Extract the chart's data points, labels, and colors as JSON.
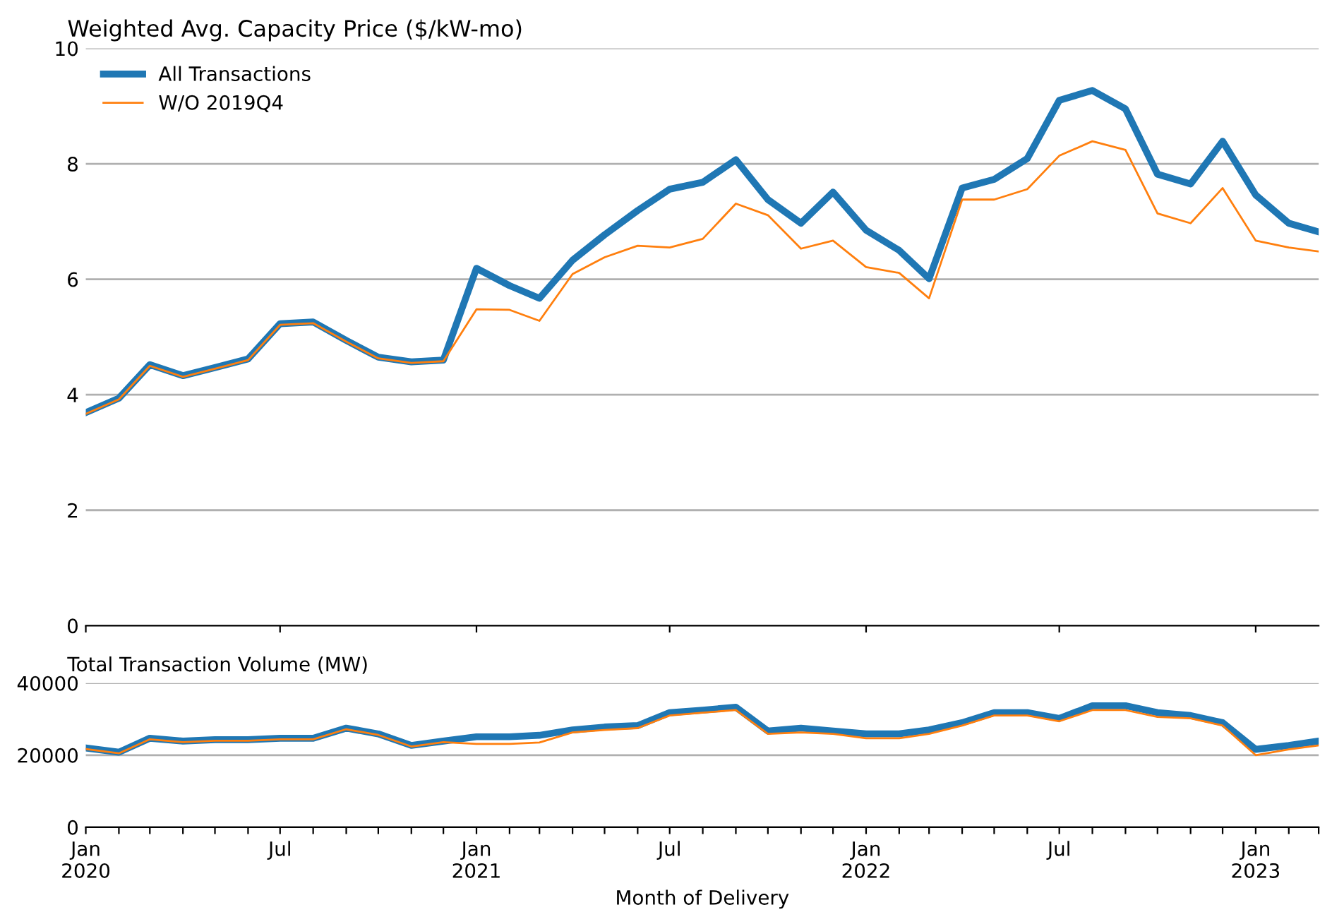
{
  "chart_data": [
    {
      "type": "line",
      "title": "Weighted Avg. Capacity Price ($/kW-mo)",
      "x": [
        "2020-01",
        "2020-02",
        "2020-03",
        "2020-04",
        "2020-05",
        "2020-06",
        "2020-07",
        "2020-08",
        "2020-09",
        "2020-10",
        "2020-11",
        "2020-12",
        "2021-01",
        "2021-02",
        "2021-03",
        "2021-04",
        "2021-05",
        "2021-06",
        "2021-07",
        "2021-08",
        "2021-09",
        "2021-10",
        "2021-11",
        "2021-12",
        "2022-01",
        "2022-02",
        "2022-03",
        "2022-04",
        "2022-05",
        "2022-06",
        "2022-07",
        "2022-08",
        "2022-09",
        "2022-10",
        "2022-11",
        "2022-12",
        "2023-01",
        "2023-02",
        "2023-03"
      ],
      "series": [
        {
          "name": "All Transactions",
          "color": "#1f77b4",
          "values": [
            3.69,
            3.94,
            4.52,
            4.33,
            4.47,
            4.62,
            5.23,
            5.26,
            4.94,
            4.65,
            4.57,
            4.6,
            6.19,
            5.89,
            5.67,
            6.33,
            6.77,
            7.19,
            7.56,
            7.68,
            8.07,
            7.38,
            6.97,
            7.51,
            6.85,
            6.5,
            6.01,
            7.58,
            7.73,
            8.09,
            9.1,
            9.27,
            8.95,
            7.82,
            7.65,
            8.39,
            7.46,
            6.97,
            6.82
          ]
        },
        {
          "name": "W/O 2019Q4",
          "color": "#ff7f0e",
          "values": [
            3.67,
            3.92,
            4.5,
            4.31,
            4.45,
            4.6,
            5.21,
            5.24,
            4.92,
            4.63,
            4.55,
            4.58,
            5.48,
            5.47,
            5.28,
            6.09,
            6.38,
            6.58,
            6.55,
            6.7,
            7.31,
            7.11,
            6.53,
            6.67,
            6.21,
            6.11,
            5.67,
            7.38,
            7.38,
            7.56,
            8.14,
            8.39,
            8.24,
            7.14,
            6.97,
            7.58,
            6.67,
            6.55,
            6.48
          ]
        }
      ],
      "xlim": [
        "2020-01",
        "2023-03"
      ],
      "ylim": [
        0,
        10
      ],
      "yticks": [
        0,
        2,
        4,
        6,
        8,
        10
      ],
      "xticks": [
        {
          "value": "2020-01",
          "label": null
        },
        {
          "value": "2020-07",
          "label": null
        },
        {
          "value": "2021-01",
          "label": null
        },
        {
          "value": "2021-07",
          "label": null
        },
        {
          "value": "2022-01",
          "label": null
        },
        {
          "value": "2022-07",
          "label": null
        },
        {
          "value": "2023-01",
          "label": null
        }
      ],
      "tick_labels": "y",
      "grid": "y",
      "legend": "top left"
    },
    {
      "type": "line",
      "title": "Total Transaction Volume (MW)",
      "xlabel": "Month of Delivery",
      "x": [
        "2020-01",
        "2020-02",
        "2020-03",
        "2020-04",
        "2020-05",
        "2020-06",
        "2020-07",
        "2020-08",
        "2020-09",
        "2020-10",
        "2020-11",
        "2020-12",
        "2021-01",
        "2021-02",
        "2021-03",
        "2021-04",
        "2021-05",
        "2021-06",
        "2021-07",
        "2021-08",
        "2021-09",
        "2021-10",
        "2021-11",
        "2021-12",
        "2022-01",
        "2022-02",
        "2022-03",
        "2022-04",
        "2022-05",
        "2022-06",
        "2022-07",
        "2022-08",
        "2022-09",
        "2022-10",
        "2022-11",
        "2022-12",
        "2023-01",
        "2023-02",
        "2023-03"
      ],
      "series": [
        {
          "color": "#1f77b4",
          "values": [
            22000,
            20800,
            24700,
            23900,
            24300,
            24300,
            24700,
            24700,
            27500,
            25900,
            22700,
            23900,
            25100,
            25100,
            25500,
            27000,
            27800,
            28200,
            31800,
            32500,
            33300,
            26700,
            27500,
            26700,
            25900,
            25900,
            27000,
            29000,
            31800,
            31800,
            30200,
            33700,
            33700,
            31800,
            31000,
            29000,
            21600,
            22700,
            23900
          ]
        },
        {
          "color": "#ff7f0e",
          "values": [
            21700,
            20500,
            24400,
            23600,
            24000,
            24000,
            24400,
            24400,
            27200,
            25600,
            22400,
            23600,
            23100,
            23100,
            23500,
            26300,
            27000,
            27500,
            31000,
            31800,
            32500,
            25900,
            26300,
            25900,
            24700,
            24700,
            25900,
            28200,
            31000,
            31000,
            29400,
            32500,
            32500,
            30600,
            30200,
            28200,
            20000,
            21600,
            22700
          ]
        }
      ],
      "xlim": [
        "2020-01",
        "2023-03"
      ],
      "ylim": [
        0,
        40000
      ],
      "yticks": [
        0,
        20000,
        40000
      ],
      "xticks": [
        {
          "value": "2020-01",
          "label": "Jan\n2020"
        },
        {
          "value": "2020-02",
          "label": null
        },
        {
          "value": "2020-03",
          "label": null
        },
        {
          "value": "2020-04",
          "label": null
        },
        {
          "value": "2020-05",
          "label": null
        },
        {
          "value": "2020-06",
          "label": null
        },
        {
          "value": "2020-07",
          "label": "Jul"
        },
        {
          "value": "2020-08",
          "label": null
        },
        {
          "value": "2020-09",
          "label": null
        },
        {
          "value": "2020-10",
          "label": null
        },
        {
          "value": "2020-11",
          "label": null
        },
        {
          "value": "2020-12",
          "label": null
        },
        {
          "value": "2021-01",
          "label": "Jan\n2021"
        },
        {
          "value": "2021-02",
          "label": null
        },
        {
          "value": "2021-03",
          "label": null
        },
        {
          "value": "2021-04",
          "label": null
        },
        {
          "value": "2021-05",
          "label": null
        },
        {
          "value": "2021-06",
          "label": null
        },
        {
          "value": "2021-07",
          "label": "Jul"
        },
        {
          "value": "2021-08",
          "label": null
        },
        {
          "value": "2021-09",
          "label": null
        },
        {
          "value": "2021-10",
          "label": null
        },
        {
          "value": "2021-11",
          "label": null
        },
        {
          "value": "2021-12",
          "label": null
        },
        {
          "value": "2022-01",
          "label": "Jan\n2022"
        },
        {
          "value": "2022-02",
          "label": null
        },
        {
          "value": "2022-03",
          "label": null
        },
        {
          "value": "2022-04",
          "label": null
        },
        {
          "value": "2022-05",
          "label": null
        },
        {
          "value": "2022-06",
          "label": null
        },
        {
          "value": "2022-07",
          "label": "Jul"
        },
        {
          "value": "2022-08",
          "label": null
        },
        {
          "value": "2022-09",
          "label": null
        },
        {
          "value": "2022-10",
          "label": null
        },
        {
          "value": "2022-11",
          "label": null
        },
        {
          "value": "2022-12",
          "label": null
        },
        {
          "value": "2023-01",
          "label": "Jan\n2023"
        },
        {
          "value": "2023-02",
          "label": null
        },
        {
          "value": "2023-03",
          "label": null
        }
      ],
      "grid": "y"
    }
  ]
}
